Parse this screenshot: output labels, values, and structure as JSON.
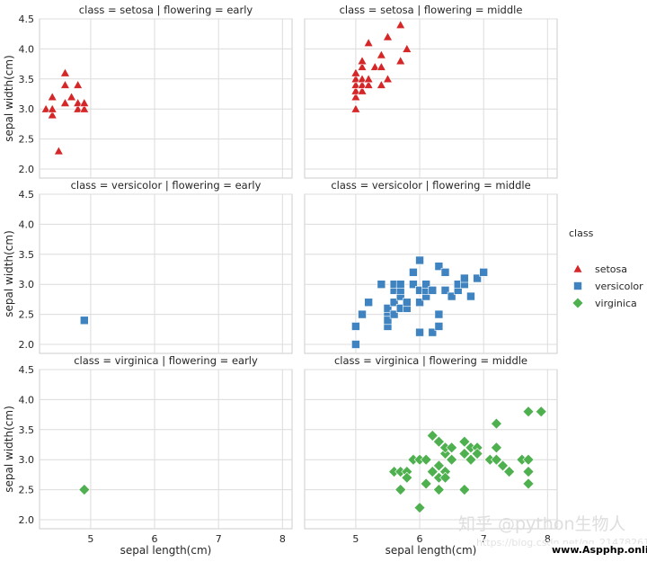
{
  "chart_data": {
    "type": "scatter",
    "title": "",
    "xlabel": "sepal length(cm)",
    "ylabel": "sepal width(cm)",
    "xlim": [
      4.2,
      8.15
    ],
    "ylim": [
      1.85,
      4.5
    ],
    "x_ticks": [
      "5",
      "6",
      "7",
      "8"
    ],
    "y_ticks": [
      "2.0",
      "2.5",
      "3.0",
      "3.5",
      "4.0",
      "4.5"
    ],
    "grid": true,
    "legend": {
      "title": "class",
      "placement": "right",
      "entries": [
        {
          "label": "setosa",
          "color": "#d62728",
          "marker": "triangle"
        },
        {
          "label": "versicolor",
          "color": "#3f84c1",
          "marker": "square"
        },
        {
          "label": "virginica",
          "color": "#4fb04f",
          "marker": "diamond"
        }
      ]
    },
    "panels": [
      {
        "title": "class = setosa | flowering = early",
        "series": "setosa",
        "x": [
          4.3,
          4.4,
          4.4,
          4.4,
          4.5,
          4.6,
          4.6,
          4.6,
          4.7,
          4.7,
          4.8,
          4.8,
          4.8,
          4.9,
          4.9
        ],
        "y": [
          3.0,
          2.9,
          3.0,
          3.2,
          2.3,
          3.1,
          3.4,
          3.6,
          3.2,
          3.2,
          3.0,
          3.1,
          3.4,
          3.0,
          3.1
        ]
      },
      {
        "title": "class = setosa | flowering = middle",
        "series": "setosa",
        "x": [
          5.0,
          5.0,
          5.0,
          5.0,
          5.0,
          5.0,
          5.0,
          5.1,
          5.1,
          5.1,
          5.1,
          5.1,
          5.1,
          5.2,
          5.2,
          5.2,
          5.3,
          5.4,
          5.4,
          5.4,
          5.5,
          5.5,
          5.7,
          5.7,
          5.8
        ],
        "y": [
          3.0,
          3.2,
          3.3,
          3.4,
          3.5,
          3.6,
          3.0,
          3.3,
          3.4,
          3.5,
          3.7,
          3.8,
          3.8,
          3.4,
          3.5,
          4.1,
          3.7,
          3.4,
          3.7,
          3.9,
          3.5,
          4.2,
          3.8,
          4.4,
          4.0
        ]
      },
      {
        "title": "class = versicolor | flowering = early",
        "series": "versicolor",
        "x": [
          4.9
        ],
        "y": [
          2.4
        ]
      },
      {
        "title": "class = versicolor | flowering = middle",
        "series": "versicolor",
        "x": [
          5.0,
          5.0,
          5.1,
          5.2,
          5.4,
          5.5,
          5.5,
          5.5,
          5.5,
          5.5,
          5.6,
          5.6,
          5.6,
          5.6,
          5.6,
          5.7,
          5.7,
          5.7,
          5.7,
          5.7,
          5.8,
          5.8,
          5.8,
          5.9,
          5.9,
          6.0,
          6.0,
          6.0,
          6.0,
          6.0,
          6.1,
          6.1,
          6.1,
          6.2,
          6.2,
          6.3,
          6.3,
          6.3,
          6.4,
          6.4,
          6.5,
          6.6,
          6.6,
          6.7,
          6.7,
          6.7,
          6.8,
          6.9,
          7.0
        ],
        "y": [
          2.0,
          2.3,
          2.5,
          2.7,
          3.0,
          2.3,
          2.4,
          2.5,
          2.6,
          2.4,
          2.5,
          2.7,
          2.9,
          3.0,
          3.0,
          2.6,
          2.8,
          2.9,
          3.0,
          2.6,
          2.6,
          2.7,
          2.7,
          3.0,
          3.2,
          2.2,
          2.7,
          2.9,
          3.4,
          2.9,
          2.8,
          2.9,
          3.0,
          2.2,
          2.9,
          2.5,
          2.3,
          3.3,
          2.9,
          3.2,
          2.8,
          2.9,
          3.0,
          3.1,
          3.0,
          3.1,
          2.8,
          3.1,
          3.2
        ]
      },
      {
        "title": "class = virginica | flowering = early",
        "series": "virginica",
        "x": [
          4.9
        ],
        "y": [
          2.5
        ]
      },
      {
        "title": "class = virginica | flowering = middle",
        "series": "virginica",
        "x": [
          5.6,
          5.7,
          5.7,
          5.8,
          5.8,
          5.8,
          5.9,
          5.9,
          6.0,
          6.0,
          6.1,
          6.1,
          6.2,
          6.2,
          6.3,
          6.3,
          6.3,
          6.3,
          6.4,
          6.4,
          6.4,
          6.4,
          6.5,
          6.5,
          6.5,
          6.7,
          6.7,
          6.7,
          6.8,
          6.8,
          6.9,
          6.9,
          6.9,
          7.1,
          7.2,
          7.2,
          7.2,
          7.3,
          7.4,
          7.6,
          7.7,
          7.7,
          7.7,
          7.7,
          7.9
        ],
        "y": [
          2.8,
          2.5,
          2.8,
          2.7,
          2.8,
          2.7,
          3.0,
          3.0,
          2.2,
          3.0,
          2.6,
          3.0,
          2.8,
          3.4,
          2.5,
          2.7,
          2.9,
          3.3,
          2.8,
          3.1,
          3.2,
          2.7,
          3.0,
          3.2,
          3.0,
          2.5,
          3.1,
          3.3,
          3.0,
          3.2,
          3.1,
          3.2,
          3.1,
          3.0,
          3.0,
          3.2,
          3.6,
          2.9,
          2.8,
          3.0,
          2.8,
          2.6,
          3.0,
          3.8,
          3.8
        ]
      }
    ]
  },
  "watermark": {
    "brand": "知乎 @python生物人",
    "url_faint": "https://blog.csdn.net/qq_21478261",
    "site": "www.Aspphp.online"
  }
}
